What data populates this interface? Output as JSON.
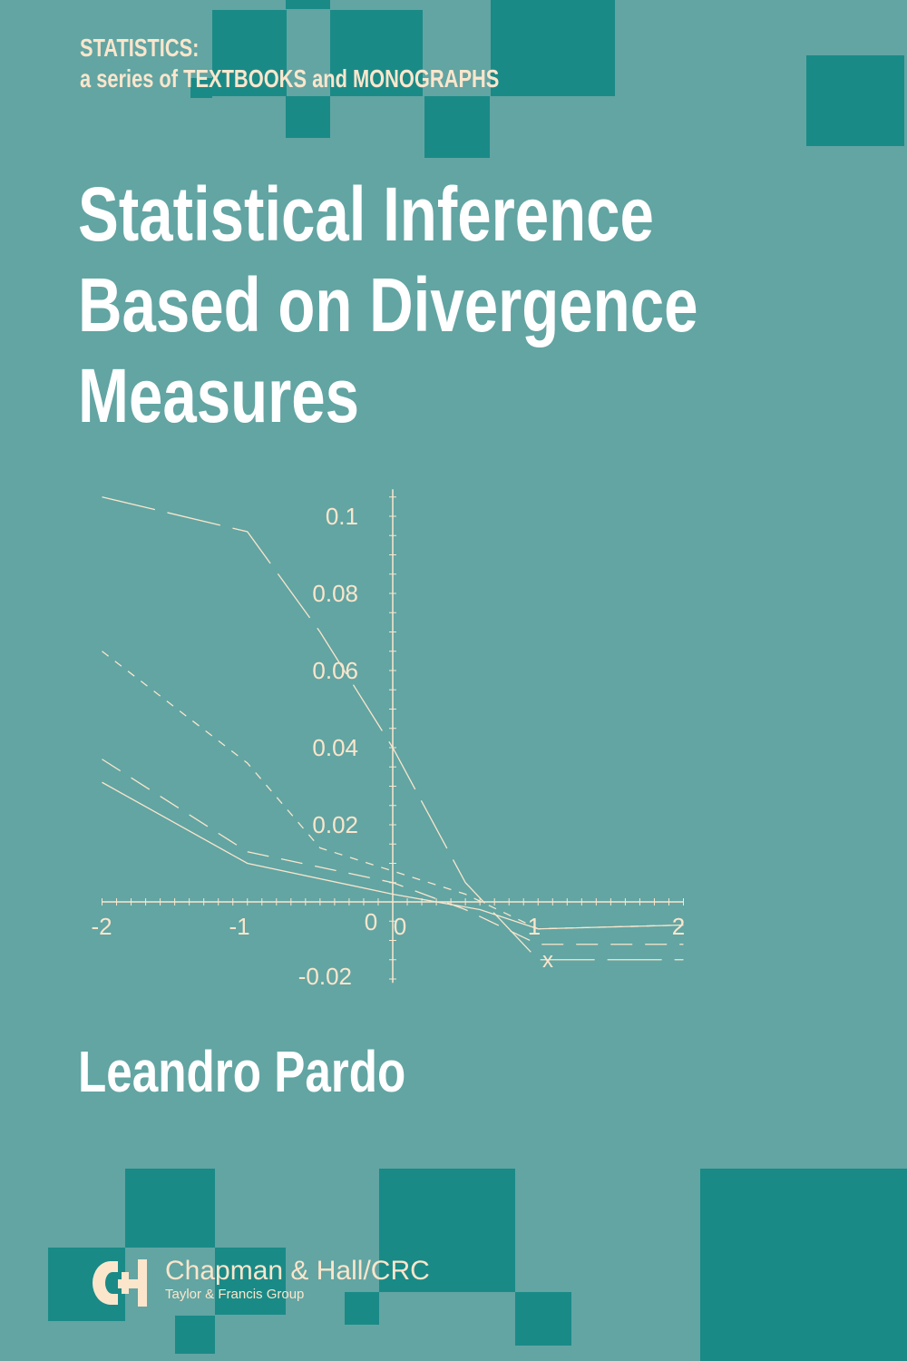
{
  "series_label": {
    "line1": "STATISTICS:",
    "line2": "a series of TEXTBOOKS and MONOGRAPHS"
  },
  "title": {
    "line1": "Statistical Inference",
    "line2": "Based on Divergence",
    "line3": "Measures"
  },
  "author": "Leandro Pardo",
  "publisher": {
    "name": "Chapman & Hall/CRC",
    "group": "Taylor & Francis Group",
    "logo_text": "CH"
  },
  "colors": {
    "background": "#62a5a3",
    "squares": "#1a8a87",
    "text_cream": "#fbe6cc",
    "title": "#ffffff"
  },
  "chart_data": {
    "type": "line",
    "xlabel": "x",
    "xlim": [
      -2,
      2
    ],
    "ylim": [
      -0.02,
      0.1
    ],
    "x_ticks": [
      "-2",
      "-1",
      "0",
      "0",
      "1",
      "2"
    ],
    "y_ticks": [
      "0.1",
      "0.08",
      "0.06",
      "0.04",
      "0.02",
      "-0.02"
    ],
    "grid": false,
    "series": [
      {
        "style": "long-dash",
        "points": [
          [
            -2,
            0.105
          ],
          [
            -1,
            0.096
          ],
          [
            -0.5,
            0.07
          ],
          [
            0,
            0.04
          ],
          [
            0.5,
            0.005
          ],
          [
            1,
            -0.015
          ],
          [
            2,
            -0.015
          ]
        ]
      },
      {
        "style": "short-dash",
        "points": [
          [
            -2,
            0.065
          ],
          [
            -1,
            0.036
          ],
          [
            -0.5,
            0.014
          ],
          [
            0,
            0.008
          ],
          [
            0.5,
            0.002
          ],
          [
            1,
            -0.007
          ],
          [
            2,
            -0.006
          ]
        ]
      },
      {
        "style": "medium-dash",
        "points": [
          [
            -2,
            0.037
          ],
          [
            -1,
            0.013
          ],
          [
            0,
            0.005
          ],
          [
            0.5,
            -0.002
          ],
          [
            1,
            -0.011
          ],
          [
            2,
            -0.011
          ]
        ]
      },
      {
        "style": "solid",
        "points": [
          [
            -2,
            0.031
          ],
          [
            -1,
            0.01
          ],
          [
            0,
            0.002
          ],
          [
            0.6,
            -0.002
          ],
          [
            1,
            -0.007
          ],
          [
            2,
            -0.006
          ]
        ]
      }
    ]
  }
}
